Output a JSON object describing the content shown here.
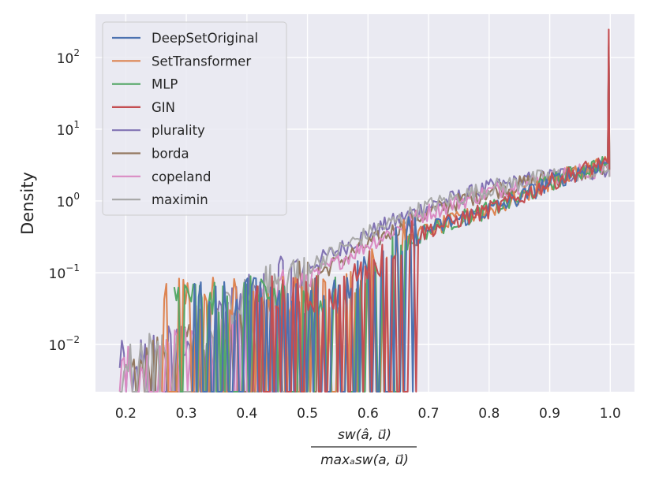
{
  "chart_data": {
    "type": "line",
    "title": "",
    "xlabel_numerator": "sw(â, u⃗)",
    "xlabel_denominator": "maxₐsw(a, u⃗)",
    "ylabel": "Density",
    "yscale": "log",
    "xlim": [
      0.15,
      1.04
    ],
    "ylim": [
      0.0022,
      400
    ],
    "x_ticks": [
      "0.2",
      "0.3",
      "0.4",
      "0.5",
      "0.6",
      "0.7",
      "0.8",
      "0.9",
      "1.0"
    ],
    "y_ticks": [
      {
        "base": "10",
        "exp": "2"
      },
      {
        "base": "10",
        "exp": "1"
      },
      {
        "base": "10",
        "exp": "0"
      },
      {
        "base": "10",
        "exp": "−1"
      },
      {
        "base": "10",
        "exp": "−2"
      }
    ],
    "grid": true,
    "legend_position": "top-left",
    "series": [
      {
        "name": "DeepSetOriginal",
        "color": "#4c72b0",
        "start": 0.31,
        "end": 0.68,
        "peak": 140,
        "points": [
          [
            0.55,
            0.04
          ],
          [
            0.6,
            0.1
          ],
          [
            0.65,
            0.22
          ],
          [
            0.7,
            0.4
          ],
          [
            0.75,
            0.55
          ],
          [
            0.8,
            0.75
          ],
          [
            0.85,
            1.1
          ],
          [
            0.9,
            1.8
          ],
          [
            0.95,
            2.6
          ],
          [
            0.99,
            3.4
          ]
        ]
      },
      {
        "name": "SetTransformer",
        "color": "#dd8452",
        "start": 0.26,
        "end": 0.66,
        "peak": 120,
        "points": [
          [
            0.55,
            0.04
          ],
          [
            0.6,
            0.1
          ],
          [
            0.65,
            0.22
          ],
          [
            0.7,
            0.4
          ],
          [
            0.75,
            0.55
          ],
          [
            0.8,
            0.75
          ],
          [
            0.85,
            1.1
          ],
          [
            0.9,
            1.8
          ],
          [
            0.95,
            2.6
          ],
          [
            0.99,
            3.4
          ]
        ]
      },
      {
        "name": "MLP",
        "color": "#55a868",
        "start": 0.28,
        "end": 0.66,
        "peak": 150,
        "points": [
          [
            0.55,
            0.04
          ],
          [
            0.6,
            0.1
          ],
          [
            0.65,
            0.22
          ],
          [
            0.7,
            0.4
          ],
          [
            0.75,
            0.55
          ],
          [
            0.8,
            0.75
          ],
          [
            0.85,
            1.1
          ],
          [
            0.9,
            1.8
          ],
          [
            0.95,
            2.6
          ],
          [
            0.99,
            3.4
          ]
        ]
      },
      {
        "name": "GIN",
        "color": "#c44e52",
        "start": 0.41,
        "end": 0.68,
        "peak": 245,
        "points": [
          [
            0.55,
            0.04
          ],
          [
            0.6,
            0.1
          ],
          [
            0.65,
            0.22
          ],
          [
            0.7,
            0.4
          ],
          [
            0.75,
            0.55
          ],
          [
            0.8,
            0.75
          ],
          [
            0.85,
            1.1
          ],
          [
            0.9,
            1.8
          ],
          [
            0.95,
            2.6
          ],
          [
            0.99,
            3.4
          ]
        ]
      },
      {
        "name": "plurality",
        "color": "#8172b3",
        "start": 0.19,
        "end": 0.5,
        "peak": 100,
        "points": [
          [
            0.2,
            0.005
          ],
          [
            0.3,
            0.01
          ],
          [
            0.4,
            0.04
          ],
          [
            0.5,
            0.12
          ],
          [
            0.6,
            0.35
          ],
          [
            0.7,
            0.85
          ],
          [
            0.8,
            1.5
          ],
          [
            0.9,
            2.2
          ],
          [
            0.95,
            2.5
          ],
          [
            0.99,
            2.7
          ]
        ]
      },
      {
        "name": "borda",
        "color": "#937860",
        "start": 0.21,
        "end": 0.52,
        "peak": 110,
        "points": [
          [
            0.2,
            0.004
          ],
          [
            0.3,
            0.008
          ],
          [
            0.4,
            0.025
          ],
          [
            0.5,
            0.08
          ],
          [
            0.6,
            0.25
          ],
          [
            0.7,
            0.7
          ],
          [
            0.8,
            1.35
          ],
          [
            0.9,
            2.1
          ],
          [
            0.95,
            2.5
          ],
          [
            0.99,
            2.8
          ]
        ]
      },
      {
        "name": "copeland",
        "color": "#da8bc3",
        "start": 0.19,
        "end": 0.5,
        "peak": 100,
        "points": [
          [
            0.2,
            0.004
          ],
          [
            0.3,
            0.008
          ],
          [
            0.4,
            0.025
          ],
          [
            0.5,
            0.08
          ],
          [
            0.6,
            0.25
          ],
          [
            0.7,
            0.7
          ],
          [
            0.8,
            1.35
          ],
          [
            0.9,
            2.1
          ],
          [
            0.95,
            2.5
          ],
          [
            0.99,
            2.8
          ]
        ]
      },
      {
        "name": "maximin",
        "color": "#a9a9a9",
        "start": 0.19,
        "end": 0.5,
        "peak": 100,
        "points": [
          [
            0.2,
            0.005
          ],
          [
            0.3,
            0.01
          ],
          [
            0.4,
            0.04
          ],
          [
            0.5,
            0.12
          ],
          [
            0.6,
            0.35
          ],
          [
            0.7,
            0.85
          ],
          [
            0.8,
            1.5
          ],
          [
            0.9,
            2.2
          ],
          [
            0.95,
            2.5
          ],
          [
            0.99,
            2.7
          ]
        ]
      }
    ]
  }
}
